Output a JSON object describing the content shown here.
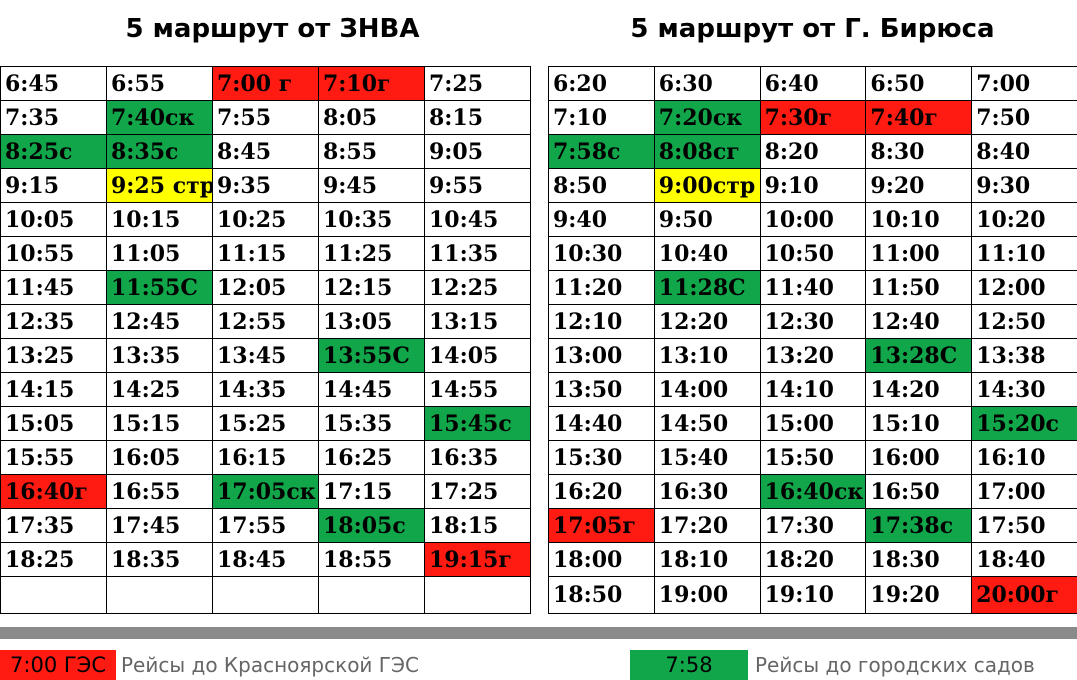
{
  "left": {
    "title": "5 маршрут от ЗНВА",
    "rows": [
      [
        {
          "t": "6:45",
          "c": ""
        },
        {
          "t": "6:55",
          "c": ""
        },
        {
          "t": "7:00 г",
          "c": "red"
        },
        {
          "t": "7:10г",
          "c": "red"
        },
        {
          "t": "7:25",
          "c": ""
        }
      ],
      [
        {
          "t": "7:35",
          "c": ""
        },
        {
          "t": "7:40ск",
          "c": "green"
        },
        {
          "t": "7:55",
          "c": ""
        },
        {
          "t": "8:05",
          "c": ""
        },
        {
          "t": "8:15",
          "c": ""
        }
      ],
      [
        {
          "t": "8:25с",
          "c": "green"
        },
        {
          "t": "8:35с",
          "c": "green"
        },
        {
          "t": "8:45",
          "c": ""
        },
        {
          "t": "8:55",
          "c": ""
        },
        {
          "t": "9:05",
          "c": ""
        }
      ],
      [
        {
          "t": "9:15",
          "c": ""
        },
        {
          "t": "9:25 стр",
          "c": "yellow"
        },
        {
          "t": "9:35",
          "c": ""
        },
        {
          "t": "9:45",
          "c": ""
        },
        {
          "t": "9:55",
          "c": ""
        }
      ],
      [
        {
          "t": "10:05",
          "c": ""
        },
        {
          "t": "10:15",
          "c": ""
        },
        {
          "t": "10:25",
          "c": ""
        },
        {
          "t": "10:35",
          "c": ""
        },
        {
          "t": "10:45",
          "c": ""
        }
      ],
      [
        {
          "t": "10:55",
          "c": ""
        },
        {
          "t": "11:05",
          "c": ""
        },
        {
          "t": "11:15",
          "c": ""
        },
        {
          "t": "11:25",
          "c": ""
        },
        {
          "t": "11:35",
          "c": ""
        }
      ],
      [
        {
          "t": "11:45",
          "c": ""
        },
        {
          "t": "11:55С",
          "c": "green"
        },
        {
          "t": "12:05",
          "c": ""
        },
        {
          "t": "12:15",
          "c": ""
        },
        {
          "t": "12:25",
          "c": ""
        }
      ],
      [
        {
          "t": "12:35",
          "c": ""
        },
        {
          "t": "12:45",
          "c": ""
        },
        {
          "t": "12:55",
          "c": ""
        },
        {
          "t": "13:05",
          "c": ""
        },
        {
          "t": "13:15",
          "c": ""
        }
      ],
      [
        {
          "t": "13:25",
          "c": ""
        },
        {
          "t": "13:35",
          "c": ""
        },
        {
          "t": "13:45",
          "c": ""
        },
        {
          "t": "13:55С",
          "c": "green"
        },
        {
          "t": "14:05",
          "c": ""
        }
      ],
      [
        {
          "t": "14:15",
          "c": ""
        },
        {
          "t": "14:25",
          "c": ""
        },
        {
          "t": "14:35",
          "c": ""
        },
        {
          "t": "14:45",
          "c": ""
        },
        {
          "t": "14:55",
          "c": ""
        }
      ],
      [
        {
          "t": "15:05",
          "c": ""
        },
        {
          "t": "15:15",
          "c": ""
        },
        {
          "t": "15:25",
          "c": ""
        },
        {
          "t": "15:35",
          "c": ""
        },
        {
          "t": "15:45с",
          "c": "green"
        }
      ],
      [
        {
          "t": "15:55",
          "c": ""
        },
        {
          "t": "16:05",
          "c": ""
        },
        {
          "t": "16:15",
          "c": ""
        },
        {
          "t": "16:25",
          "c": ""
        },
        {
          "t": "16:35",
          "c": ""
        }
      ],
      [
        {
          "t": "16:40г",
          "c": "red"
        },
        {
          "t": "16:55",
          "c": ""
        },
        {
          "t": "17:05ск",
          "c": "green"
        },
        {
          "t": "17:15",
          "c": ""
        },
        {
          "t": "17:25",
          "c": ""
        }
      ],
      [
        {
          "t": "17:35",
          "c": ""
        },
        {
          "t": "17:45",
          "c": ""
        },
        {
          "t": "17:55",
          "c": ""
        },
        {
          "t": "18:05с",
          "c": "green"
        },
        {
          "t": "18:15",
          "c": ""
        }
      ],
      [
        {
          "t": "18:25",
          "c": ""
        },
        {
          "t": "18:35",
          "c": ""
        },
        {
          "t": "18:45",
          "c": ""
        },
        {
          "t": "18:55",
          "c": ""
        },
        {
          "t": "19:15г",
          "c": "red"
        }
      ],
      [
        {
          "t": "",
          "c": ""
        },
        {
          "t": "",
          "c": ""
        },
        {
          "t": "",
          "c": ""
        },
        {
          "t": "",
          "c": ""
        },
        {
          "t": "",
          "c": ""
        }
      ]
    ]
  },
  "right": {
    "title": "5 маршрут от Г. Бирюса",
    "rows": [
      [
        {
          "t": "6:20",
          "c": ""
        },
        {
          "t": "6:30",
          "c": ""
        },
        {
          "t": "6:40",
          "c": ""
        },
        {
          "t": "6:50",
          "c": ""
        },
        {
          "t": "7:00",
          "c": ""
        }
      ],
      [
        {
          "t": "7:10",
          "c": ""
        },
        {
          "t": "7:20ск",
          "c": "green"
        },
        {
          "t": "7:30г",
          "c": "red"
        },
        {
          "t": "7:40г",
          "c": "red"
        },
        {
          "t": "7:50",
          "c": ""
        }
      ],
      [
        {
          "t": "7:58с",
          "c": "green"
        },
        {
          "t": "8:08сг",
          "c": "green"
        },
        {
          "t": "8:20",
          "c": ""
        },
        {
          "t": "8:30",
          "c": ""
        },
        {
          "t": "8:40",
          "c": ""
        }
      ],
      [
        {
          "t": "8:50",
          "c": ""
        },
        {
          "t": "9:00стр",
          "c": "yellow"
        },
        {
          "t": "9:10",
          "c": ""
        },
        {
          "t": "9:20",
          "c": ""
        },
        {
          "t": "9:30",
          "c": ""
        }
      ],
      [
        {
          "t": "9:40",
          "c": ""
        },
        {
          "t": "9:50",
          "c": ""
        },
        {
          "t": "10:00",
          "c": ""
        },
        {
          "t": "10:10",
          "c": ""
        },
        {
          "t": "10:20",
          "c": ""
        }
      ],
      [
        {
          "t": "10:30",
          "c": ""
        },
        {
          "t": "10:40",
          "c": ""
        },
        {
          "t": "10:50",
          "c": ""
        },
        {
          "t": "11:00",
          "c": ""
        },
        {
          "t": "11:10",
          "c": ""
        }
      ],
      [
        {
          "t": "11:20",
          "c": ""
        },
        {
          "t": "11:28С",
          "c": "green"
        },
        {
          "t": "11:40",
          "c": ""
        },
        {
          "t": "11:50",
          "c": ""
        },
        {
          "t": "12:00",
          "c": ""
        }
      ],
      [
        {
          "t": "12:10",
          "c": ""
        },
        {
          "t": "12:20",
          "c": ""
        },
        {
          "t": "12:30",
          "c": ""
        },
        {
          "t": "12:40",
          "c": ""
        },
        {
          "t": "12:50",
          "c": ""
        }
      ],
      [
        {
          "t": "13:00",
          "c": ""
        },
        {
          "t": "13:10",
          "c": ""
        },
        {
          "t": "13:20",
          "c": ""
        },
        {
          "t": "13:28С",
          "c": "green"
        },
        {
          "t": "13:38",
          "c": ""
        }
      ],
      [
        {
          "t": "13:50",
          "c": ""
        },
        {
          "t": "14:00",
          "c": ""
        },
        {
          "t": "14:10",
          "c": ""
        },
        {
          "t": "14:20",
          "c": ""
        },
        {
          "t": "14:30",
          "c": ""
        }
      ],
      [
        {
          "t": "14:40",
          "c": ""
        },
        {
          "t": "14:50",
          "c": ""
        },
        {
          "t": "15:00",
          "c": ""
        },
        {
          "t": "15:10",
          "c": ""
        },
        {
          "t": "15:20с",
          "c": "green"
        }
      ],
      [
        {
          "t": "15:30",
          "c": ""
        },
        {
          "t": "15:40",
          "c": ""
        },
        {
          "t": "15:50",
          "c": ""
        },
        {
          "t": "16:00",
          "c": ""
        },
        {
          "t": "16:10",
          "c": ""
        }
      ],
      [
        {
          "t": "16:20",
          "c": ""
        },
        {
          "t": "16:30",
          "c": ""
        },
        {
          "t": "16:40ск",
          "c": "green"
        },
        {
          "t": "16:50",
          "c": ""
        },
        {
          "t": "17:00",
          "c": ""
        }
      ],
      [
        {
          "t": "17:05г",
          "c": "red"
        },
        {
          "t": "17:20",
          "c": ""
        },
        {
          "t": "17:30",
          "c": ""
        },
        {
          "t": "17:38с",
          "c": "green"
        },
        {
          "t": "17:50",
          "c": ""
        }
      ],
      [
        {
          "t": "18:00",
          "c": ""
        },
        {
          "t": "18:10",
          "c": ""
        },
        {
          "t": "18:20",
          "c": ""
        },
        {
          "t": "18:30",
          "c": ""
        },
        {
          "t": "18:40",
          "c": ""
        }
      ],
      [
        {
          "t": "18:50",
          "c": ""
        },
        {
          "t": "19:00",
          "c": ""
        },
        {
          "t": "19:10",
          "c": ""
        },
        {
          "t": "19:20",
          "c": ""
        },
        {
          "t": "20:00г",
          "c": "red"
        }
      ]
    ]
  },
  "legend": {
    "red_swatch": "7:00 ГЭС",
    "red_text": "Рейсы до Красноярской ГЭС",
    "green_swatch": "7:58",
    "green_text": "Рейсы до городских садов"
  },
  "colors": {
    "red": "#ff1a12",
    "green": "#11a64a",
    "yellow": "#ffff00",
    "divider": "#8a8a8a"
  }
}
